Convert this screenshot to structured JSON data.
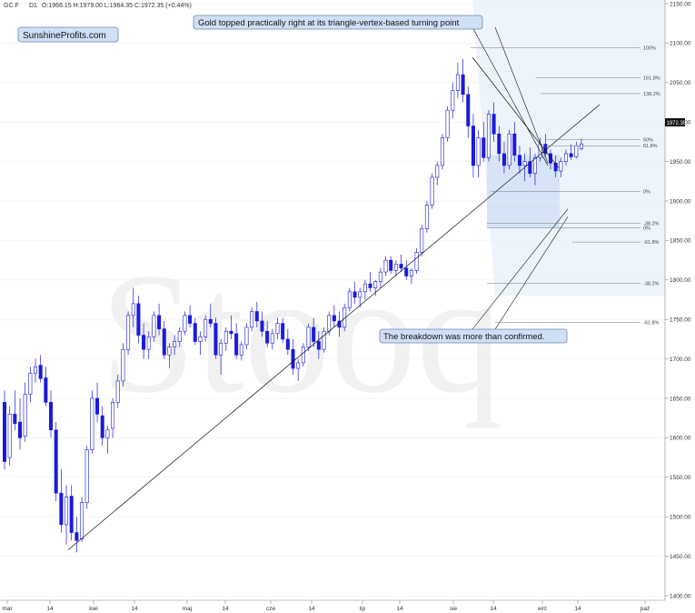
{
  "header": {
    "ticker": "GC.F",
    "interval": "D1",
    "ohlc": "O:1966.15  H:1979.00  L:1964.35  C:1972.35  (+0.44%)"
  },
  "watermark": "Stooq",
  "brand_label": "SunshineProfits.com",
  "annotations": {
    "top": "Gold topped practically right at its triangle-vertex-based turning point",
    "bottom": "The breakdown was more than confirmed."
  },
  "last_price": "1972.35",
  "colors": {
    "candle": "#1a1adb",
    "fib_fill": "#dbe7f7",
    "accent": "#000000",
    "label_bg": "#cfe0f5"
  },
  "chart_data": {
    "type": "candlestick",
    "title": "",
    "ylim": [
      1400,
      2160
    ],
    "y_ticks": [
      1400,
      1450,
      1500,
      1550,
      1600,
      1650,
      1700,
      1750,
      1800,
      1850,
      1900,
      1950,
      2000,
      2050,
      2100,
      2150
    ],
    "y_tick_labels": [
      "1400.00",
      "1450.00",
      "1500.00",
      "1550.00",
      "1600.00",
      "1650.00",
      "1700.00",
      "1750.00",
      "1800.00",
      "1850.00",
      "1900.00",
      "1950.00",
      "2000.00",
      "2050.00",
      "2100.00",
      "2150.00"
    ],
    "x_tick_labels": [
      "mar",
      "14",
      "kwi",
      "14",
      "maj",
      "14",
      "cze",
      "14",
      "lip",
      "14",
      "sie",
      "14",
      "wrz",
      "14",
      "paź"
    ],
    "fib_levels": [
      {
        "label": "100%",
        "price": 2094
      },
      {
        "label": "161.8%",
        "price": 2056
      },
      {
        "label": "138.2%",
        "price": 2036
      },
      {
        "label": "50%",
        "price": 1978
      },
      {
        "label": "61.8%",
        "price": 1970
      },
      {
        "label": "0%",
        "price": 1912
      },
      {
        "label": "-38.2%",
        "price": 1872
      },
      {
        "label": "0%",
        "price": 1866
      },
      {
        "label": "-61.8%",
        "price": 1848
      },
      {
        "label": "-38.2%",
        "price": 1796
      },
      {
        "label": "-61.8%",
        "price": 1746
      }
    ],
    "candles": [
      [
        1645,
        1660,
        1560,
        1570
      ],
      [
        1575,
        1640,
        1565,
        1630
      ],
      [
        1630,
        1660,
        1610,
        1618
      ],
      [
        1620,
        1650,
        1585,
        1600
      ],
      [
        1602,
        1670,
        1595,
        1655
      ],
      [
        1655,
        1690,
        1645,
        1682
      ],
      [
        1682,
        1700,
        1670,
        1690
      ],
      [
        1692,
        1705,
        1670,
        1675
      ],
      [
        1676,
        1690,
        1640,
        1645
      ],
      [
        1645,
        1660,
        1600,
        1610
      ],
      [
        1610,
        1620,
        1520,
        1530
      ],
      [
        1530,
        1560,
        1480,
        1490
      ],
      [
        1490,
        1540,
        1465,
        1525
      ],
      [
        1526,
        1540,
        1470,
        1480
      ],
      [
        1480,
        1500,
        1455,
        1470
      ],
      [
        1472,
        1525,
        1468,
        1518
      ],
      [
        1518,
        1590,
        1510,
        1585
      ],
      [
        1585,
        1660,
        1580,
        1650
      ],
      [
        1650,
        1670,
        1620,
        1630
      ],
      [
        1628,
        1640,
        1590,
        1600
      ],
      [
        1600,
        1615,
        1580,
        1610
      ],
      [
        1612,
        1650,
        1600,
        1645
      ],
      [
        1645,
        1680,
        1638,
        1672
      ],
      [
        1672,
        1720,
        1665,
        1712
      ],
      [
        1712,
        1760,
        1705,
        1755
      ],
      [
        1755,
        1790,
        1740,
        1770
      ],
      [
        1770,
        1780,
        1720,
        1730
      ],
      [
        1730,
        1745,
        1700,
        1712
      ],
      [
        1712,
        1735,
        1700,
        1728
      ],
      [
        1728,
        1760,
        1722,
        1755
      ],
      [
        1755,
        1770,
        1730,
        1738
      ],
      [
        1738,
        1748,
        1700,
        1705
      ],
      [
        1705,
        1720,
        1688,
        1715
      ],
      [
        1715,
        1730,
        1705,
        1722
      ],
      [
        1722,
        1740,
        1715,
        1735
      ],
      [
        1735,
        1760,
        1730,
        1755
      ],
      [
        1755,
        1768,
        1740,
        1745
      ],
      [
        1745,
        1752,
        1718,
        1722
      ],
      [
        1722,
        1735,
        1705,
        1728
      ],
      [
        1728,
        1755,
        1722,
        1750
      ],
      [
        1750,
        1770,
        1740,
        1745
      ],
      [
        1745,
        1752,
        1700,
        1705
      ],
      [
        1705,
        1725,
        1680,
        1720
      ],
      [
        1720,
        1740,
        1710,
        1735
      ],
      [
        1735,
        1755,
        1725,
        1732
      ],
      [
        1732,
        1745,
        1700,
        1705
      ],
      [
        1705,
        1722,
        1698,
        1718
      ],
      [
        1718,
        1745,
        1712,
        1740
      ],
      [
        1740,
        1765,
        1735,
        1760
      ],
      [
        1760,
        1772,
        1740,
        1748
      ],
      [
        1748,
        1760,
        1728,
        1735
      ],
      [
        1735,
        1748,
        1715,
        1720
      ],
      [
        1720,
        1738,
        1712,
        1732
      ],
      [
        1732,
        1752,
        1725,
        1745
      ],
      [
        1745,
        1752,
        1720,
        1725
      ],
      [
        1725,
        1738,
        1705,
        1712
      ],
      [
        1712,
        1725,
        1680,
        1688
      ],
      [
        1688,
        1700,
        1672,
        1695
      ],
      [
        1695,
        1720,
        1690,
        1715
      ],
      [
        1715,
        1745,
        1710,
        1740
      ],
      [
        1740,
        1752,
        1715,
        1722
      ],
      [
        1722,
        1735,
        1700,
        1712
      ],
      [
        1712,
        1740,
        1708,
        1735
      ],
      [
        1735,
        1760,
        1730,
        1755
      ],
      [
        1755,
        1768,
        1740,
        1748
      ],
      [
        1748,
        1760,
        1728,
        1740
      ],
      [
        1740,
        1770,
        1735,
        1765
      ],
      [
        1765,
        1790,
        1760,
        1785
      ],
      [
        1785,
        1798,
        1770,
        1778
      ],
      [
        1778,
        1790,
        1765,
        1785
      ],
      [
        1785,
        1800,
        1775,
        1795
      ],
      [
        1795,
        1810,
        1785,
        1790
      ],
      [
        1790,
        1800,
        1780,
        1798
      ],
      [
        1798,
        1815,
        1790,
        1810
      ],
      [
        1810,
        1830,
        1805,
        1825
      ],
      [
        1825,
        1830,
        1808,
        1812
      ],
      [
        1812,
        1825,
        1805,
        1820
      ],
      [
        1820,
        1832,
        1810,
        1815
      ],
      [
        1815,
        1825,
        1800,
        1805
      ],
      [
        1805,
        1815,
        1795,
        1812
      ],
      [
        1812,
        1840,
        1808,
        1835
      ],
      [
        1835,
        1870,
        1830,
        1865
      ],
      [
        1865,
        1900,
        1860,
        1895
      ],
      [
        1895,
        1935,
        1890,
        1930
      ],
      [
        1930,
        1950,
        1920,
        1945
      ],
      [
        1945,
        1985,
        1940,
        1980
      ],
      [
        1980,
        2020,
        1975,
        2015
      ],
      [
        2015,
        2050,
        2005,
        2040
      ],
      [
        2040,
        2075,
        2030,
        2060
      ],
      [
        2060,
        2080,
        2025,
        2035
      ],
      [
        2035,
        2045,
        1980,
        1995
      ],
      [
        1995,
        2010,
        1930,
        1945
      ],
      [
        1945,
        1990,
        1930,
        1980
      ],
      [
        1980,
        2000,
        1950,
        1955
      ],
      [
        1955,
        2015,
        1950,
        2010
      ],
      [
        2010,
        2025,
        1975,
        1985
      ],
      [
        1985,
        1995,
        1950,
        1960
      ],
      [
        1960,
        1975,
        1935,
        1945
      ],
      [
        1945,
        1990,
        1940,
        1985
      ],
      [
        1985,
        2000,
        1950,
        1958
      ],
      [
        1958,
        1970,
        1935,
        1945
      ],
      [
        1945,
        1960,
        1925,
        1950
      ],
      [
        1950,
        1968,
        1930,
        1935
      ],
      [
        1935,
        1960,
        1920,
        1955
      ],
      [
        1955,
        1980,
        1950,
        1972
      ],
      [
        1972,
        1985,
        1955,
        1960
      ],
      [
        1960,
        1965,
        1940,
        1948
      ],
      [
        1948,
        1958,
        1930,
        1938
      ],
      [
        1938,
        1955,
        1930,
        1950
      ],
      [
        1950,
        1965,
        1945,
        1960
      ],
      [
        1960,
        1972,
        1952,
        1956
      ],
      [
        1956,
        1975,
        1954,
        1970
      ],
      [
        1966.15,
        1979,
        1964.35,
        1972.35
      ]
    ]
  }
}
